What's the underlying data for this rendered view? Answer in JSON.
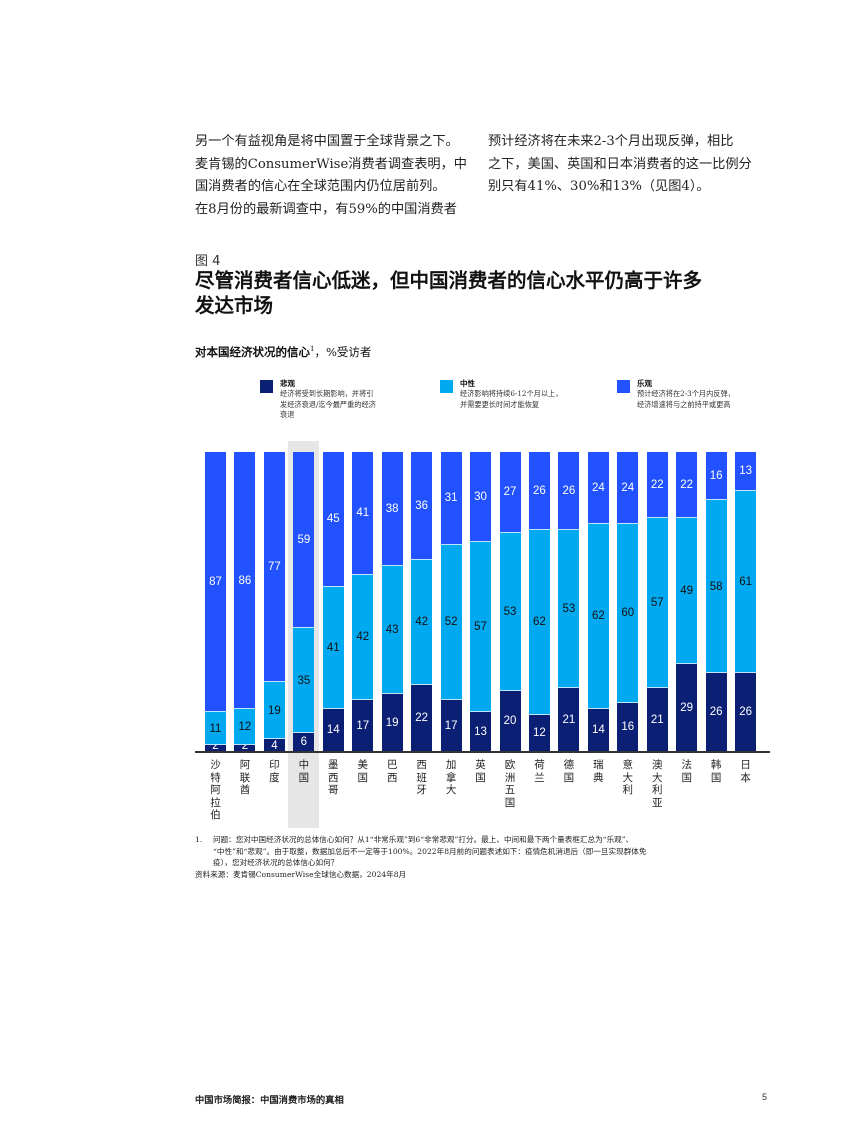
{
  "body_text": {
    "left_column": [
      "另一个有益视角是将中国置于全球背景之下。",
      "麦肯锡的ConsumerWise消费者调查表明，中",
      "国消费者的信心在全球范围内仍位居前列。",
      "在8月份的最新调查中，有59%的中国消费者"
    ],
    "right_column": [
      "预计经济将在未来2-3个月出现反弹，相比",
      "之下，美国、英国和日本消费者的这一比例分",
      "别只有41%、30%和13%（见图4）。"
    ]
  },
  "figure": {
    "label": "图 4",
    "title_lines": [
      "尽管消费者信心低迷，但中国消费者的信心水平仍高于许多",
      "发达市场"
    ],
    "subtitle_bold": "对本国经济状况的信心",
    "subtitle_sup": "1",
    "subtitle_rest": "，%受访者"
  },
  "legend": [
    {
      "key": "pessimistic",
      "title": "悲观",
      "color": "#0b1f75",
      "desc": [
        "经济将受到长期影响，并将引",
        "发经济衰退/迄今最严重的经济",
        "衰退"
      ]
    },
    {
      "key": "neutral",
      "title": "中性",
      "color": "#00a9f0",
      "desc": [
        "经济影响将持续6-12个月以上，",
        "并需要更长时间才能恢复"
      ]
    },
    {
      "key": "optimistic",
      "title": "乐观",
      "color": "#2251ff",
      "desc": [
        "预计经济将在2-3个月内反弹，",
        "经济增速将与之前持平或更高"
      ]
    }
  ],
  "chart_data": {
    "type": "bar",
    "stacked": true,
    "orientation": "vertical",
    "title": "对本国经济状况的信心1，%受访者",
    "xlabel": "",
    "ylabel": "%受访者",
    "ylim": [
      0,
      100
    ],
    "grid": false,
    "legend_position": "top",
    "highlighted_category": "中国",
    "categories": [
      "沙特阿拉伯",
      "阿联酋",
      "印度",
      "中国",
      "墨西哥",
      "美国",
      "巴西",
      "西班牙",
      "加拿大",
      "英国",
      "欧洲五国",
      "荷兰",
      "德国",
      "瑞典",
      "意大利",
      "澳大利亚",
      "法国",
      "韩国",
      "日本"
    ],
    "series": [
      {
        "name": "悲观",
        "color": "#0b1f75",
        "values": [
          2,
          2,
          4,
          6,
          14,
          17,
          19,
          22,
          17,
          13,
          20,
          12,
          21,
          14,
          16,
          21,
          29,
          26,
          26
        ]
      },
      {
        "name": "中性",
        "color": "#00a9f0",
        "values": [
          11,
          12,
          19,
          35,
          41,
          42,
          43,
          42,
          52,
          57,
          53,
          62,
          53,
          62,
          60,
          57,
          49,
          58,
          61
        ]
      },
      {
        "name": "乐观",
        "color": "#2251ff",
        "values": [
          87,
          86,
          77,
          59,
          45,
          41,
          38,
          36,
          31,
          30,
          27,
          26,
          26,
          24,
          24,
          22,
          22,
          16,
          13
        ]
      }
    ]
  },
  "footnote": {
    "number": "1.",
    "lines": [
      "问题：您对中国经济状况的总体信心如何？从1“非常乐观”到6“非常悲观”打分。最上、中间和最下两个量表框汇总为“乐观”、",
      "“中性”和“悲观”。由于取整，数据加总后不一定等于100%。2022年8月前的问题表述如下：疫情危机消退后（即一旦实现群体免",
      "疫），您对经济状况的总体信心如何？"
    ]
  },
  "source": "资料来源：麦肯锡ConsumerWise全球信心数据，2024年8月",
  "footer": {
    "title": "中国市场简报：中国消费市场的真相",
    "page_number": "5"
  }
}
